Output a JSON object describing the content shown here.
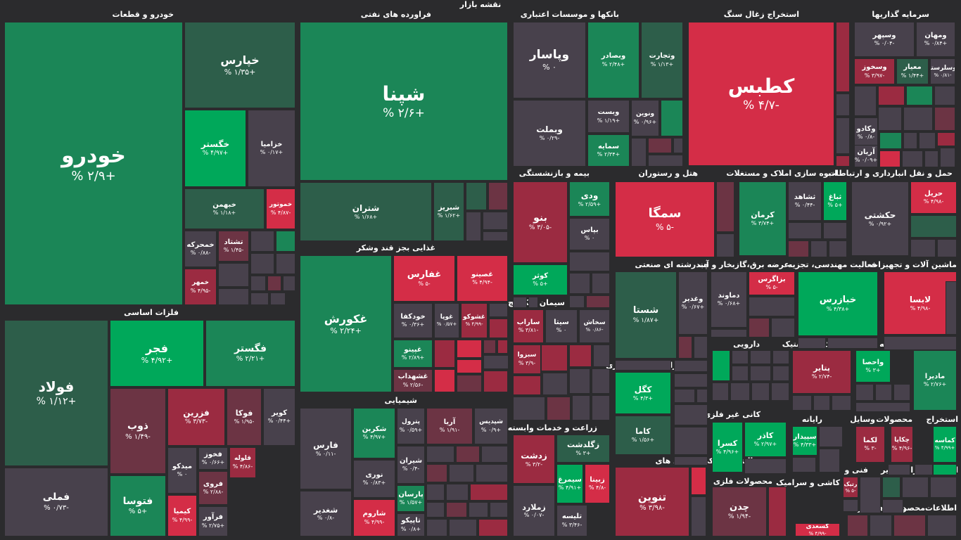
{
  "page_title": "نقشه بازار",
  "colors": {
    "g1": "#00a85a",
    "g2": "#1b8657",
    "g3": "#2d5e4a",
    "n0": "#48414c",
    "r1": "#d42d47",
    "r2": "#9b2b41",
    "r3": "#6c3444",
    "bg": "#2b2b2d"
  },
  "chart_data": {
    "type": "treemap",
    "title": "نقشه بازار",
    "value_unit": "%",
    "sectors": [
      {
        "name": "خودرو و قطعات",
        "tiles": [
          {
            "n": "خودرو",
            "v": "+۲/۹ %"
          },
          {
            "n": "خپارس",
            "v": "+۱/۳۵ %"
          },
          {
            "n": "خگستر",
            "v": "+۴/۹۷ %"
          },
          {
            "n": "خزامیا",
            "v": "+۰/۱۷ %"
          },
          {
            "n": "خبهمن",
            "v": "+۱/۱۸ %"
          },
          {
            "n": "خموتور",
            "v": "-۴/۸۷ %"
          },
          {
            "n": "خمحرکه",
            "v": "-۰/۸۸ %"
          },
          {
            "n": "تشتاد",
            "v": "-۱/۴۵ %"
          },
          {
            "n": "خمهر",
            "v": "-۴/۹۵ %"
          }
        ]
      },
      {
        "name": "فراورده های نفتی",
        "tiles": [
          {
            "n": "شپنا",
            "v": "+۲/۶ %"
          },
          {
            "n": "شتران",
            "v": "+۱/۶۸ %"
          },
          {
            "n": "شبریز",
            "v": "+۱/۶۲ %"
          }
        ]
      },
      {
        "name": "بانکها و موسسات اعتباری",
        "tiles": [
          {
            "n": "وپاسار",
            "v": "۰ %"
          },
          {
            "n": "وبصادر",
            "v": "+۲/۴۸ %"
          },
          {
            "n": "وتجارت",
            "v": "+۱/۱۳ %"
          },
          {
            "n": "وبملت",
            "v": "-۰/۲۹ %"
          },
          {
            "n": "وبست",
            "v": "+۱/۱۹ %"
          },
          {
            "n": "ونوین",
            "v": "+۰/۹۶ %"
          },
          {
            "n": "سمایه",
            "v": "+۲/۳۴ %"
          }
        ]
      },
      {
        "name": "استخراج زغال سنگ",
        "tiles": [
          {
            "n": "کطبس",
            "v": "-۴/۷ %"
          }
        ]
      },
      {
        "name": "سرمایه گذاریها",
        "tiles": [
          {
            "n": "وسپهر",
            "v": "-۰/۰۴ %"
          },
          {
            "n": "ومهان",
            "v": "+۰/۸۴ %"
          },
          {
            "n": "وسخوز",
            "v": "-۳/۹۷ %"
          },
          {
            "n": "معیار",
            "v": "+۱/۴۴ %"
          },
          {
            "n": "وسلرستا",
            "v": "-۰/۸۱ %"
          },
          {
            "n": "وکادو",
            "v": "-۰/۸ %"
          },
          {
            "n": "آریان",
            "v": "+۰/۰۹ %"
          }
        ]
      },
      {
        "name": "فلزات اساسی",
        "tiles": [
          {
            "n": "فولاد",
            "v": "+۱/۱۲ %"
          },
          {
            "n": "فملی",
            "v": "-۰/۷۳ %"
          },
          {
            "n": "فجر",
            "v": "+۴/۹۲ %"
          },
          {
            "n": "فگستر",
            "v": "+۲/۲۱ %"
          },
          {
            "n": "ذوب",
            "v": "-۱/۴۹ %"
          },
          {
            "n": "فزرین",
            "v": "-۳/۷۳ %"
          },
          {
            "n": "فوکا",
            "v": "-۱/۹۵ %"
          },
          {
            "n": "کویر",
            "v": "+۰/۴۴ %"
          },
          {
            "n": "فتوسا",
            "v": "+۵ %"
          },
          {
            "n": "میدکو",
            "v": "۰ %"
          },
          {
            "n": "فخوز",
            "v": "+۰/۶۶ %"
          },
          {
            "n": "قلوله",
            "v": "-۴/۸۶ %"
          },
          {
            "n": "فروی",
            "v": "-۲/۸۸ %"
          },
          {
            "n": "کیمیا",
            "v": "-۴/۹۹ %"
          },
          {
            "n": "فرآور",
            "v": "+۲/۷۵ %"
          }
        ]
      },
      {
        "name": "غذایی بجز قند وشکر",
        "tiles": [
          {
            "n": "غکورش",
            "v": "+۲/۲۴ %"
          },
          {
            "n": "غفارس",
            "v": "-۵ %"
          },
          {
            "n": "غصینو",
            "v": "-۴/۹۴ %"
          },
          {
            "n": "خودکفا",
            "v": "+۰/۳۶ %"
          },
          {
            "n": "غوپا",
            "v": "+۰/۵۷ %"
          },
          {
            "n": "غشوکو",
            "v": "-۴/۹۹ %"
          },
          {
            "n": "غپینو",
            "v": "+۲/۸۹ %"
          },
          {
            "n": "غشهداب",
            "v": "-۲/۵۶ %"
          }
        ]
      },
      {
        "name": "شیمیایی",
        "tiles": [
          {
            "n": "فارس",
            "v": "-۰/۱۱ %"
          },
          {
            "n": "شکربن",
            "v": "+۴/۹۷ %"
          },
          {
            "n": "پترول",
            "v": "+۰/۵۹ %"
          },
          {
            "n": "آریا",
            "v": "-۱/۹۱ %"
          },
          {
            "n": "شپدیس",
            "v": "+۰/۹ %"
          },
          {
            "n": "نوری",
            "v": "+۰/۸۳ %"
          },
          {
            "n": "شیران",
            "v": "-۰/۴ %"
          },
          {
            "n": "پارسان",
            "v": "+۱/۵۷ %"
          },
          {
            "n": "شغدیر",
            "v": "-۰/۸ %"
          },
          {
            "n": "شاروم",
            "v": "-۴/۹۹ %"
          },
          {
            "n": "تاپیکو",
            "v": "+۰/۸ %"
          }
        ]
      },
      {
        "name": "بیمه و بازنشستگی",
        "tiles": [
          {
            "n": "بنو",
            "v": "-۳/۰۵ %"
          },
          {
            "n": "ودی",
            "v": "+۲/۵۹ %"
          },
          {
            "n": "بپاس",
            "v": "۰ %"
          },
          {
            "n": "کوثر",
            "v": "+۵ %"
          }
        ]
      },
      {
        "name": "هتل و رستوران",
        "tiles": [
          {
            "n": "سمگا",
            "v": "-۵ %"
          }
        ]
      },
      {
        "name": "انبوه سازی املاک و مستغلات",
        "tiles": [
          {
            "n": "کرمان",
            "v": "+۳/۷۴ %"
          },
          {
            "n": "ثشاهد",
            "v": "-۰/۴۴ %"
          },
          {
            "n": "ثباغ",
            "v": "+۵ %"
          }
        ]
      },
      {
        "name": "حمل و نقل انبارداری و ارتباطات",
        "tiles": [
          {
            "n": "حکشتی",
            "v": "+۰/۹۲ %"
          },
          {
            "n": "حریل",
            "v": "-۴/۹۸ %"
          }
        ]
      },
      {
        "name": "سیمان آهک گچ",
        "tiles": [
          {
            "n": "ساراب",
            "v": "-۳/۸۱ %"
          },
          {
            "n": "سیتا",
            "v": "۰ %"
          },
          {
            "n": "سخاش",
            "v": "-۰/۸۶ %"
          },
          {
            "n": "سبزوا",
            "v": "-۳/۹ %"
          }
        ]
      },
      {
        "name": "چندرشته ای صنعتی",
        "tiles": [
          {
            "n": "شستا",
            "v": "+۱/۸۷ %"
          },
          {
            "n": "وغدیر",
            "v": "+۰/۶۷ %"
          }
        ]
      },
      {
        "name": "عرضه برق،گازبخار و آب",
        "tiles": [
          {
            "n": "دماوند",
            "v": "+۰/۶۸ %"
          },
          {
            "n": "بزاگرس",
            "v": "-۵ %"
          }
        ]
      },
      {
        "name": "فعالیت مهندسی، تجزیه",
        "tiles": [
          {
            "n": "خبازرس",
            "v": "+۴/۳۸ %"
          }
        ]
      },
      {
        "name": "ماشین آلات و تجهیزات",
        "tiles": [
          {
            "n": "لابسا",
            "v": "-۴/۹۸ %"
          }
        ]
      },
      {
        "name": "زراعت و خدمات وابسته",
        "tiles": [
          {
            "n": "زدشت",
            "v": "-۳/۲ %"
          },
          {
            "n": "زگلدشت",
            "v": "+۳ %"
          },
          {
            "n": "سیمرغ",
            "v": "+۴/۹۱ %"
          },
          {
            "n": "زبینا",
            "v": "-۴/۸ %"
          },
          {
            "n": "زملارد",
            "v": "-۰/۰۷ %"
          },
          {
            "n": "تلیسه",
            "v": "-۳/۴۶ %"
          }
        ]
      },
      {
        "name": "استخراج کانه های فلزی",
        "tiles": [
          {
            "n": "کگل",
            "v": "+۴/۳ %"
          },
          {
            "n": "کاما",
            "v": "+۱/۵۶ %"
          }
        ]
      },
      {
        "name": "دارویی",
        "tiles": []
      },
      {
        "name": "لاستیک و پلاستیک",
        "tiles": [
          {
            "n": "پتایر",
            "v": "-۲/۷۴ %"
          }
        ]
      },
      {
        "name": "واسطه گریهای",
        "tiles": [
          {
            "n": "واحصا",
            "v": "+۳ %"
          }
        ]
      },
      {
        "name": "محصولات",
        "tiles": [
          {
            "n": "مادیرا",
            "v": "+۲/۷۶ %"
          }
        ]
      },
      {
        "name": "کانی غیر فلزی",
        "tiles": [
          {
            "n": "کسرا",
            "v": "+۴/۹۶ %"
          },
          {
            "n": "کاذر",
            "v": "+۲/۹۷ %"
          }
        ]
      },
      {
        "name": "فعالیتهای کمکی به نهاد های",
        "tiles": [
          {
            "n": "تنوین",
            "v": "-۳/۹۸ %"
          }
        ]
      },
      {
        "name": "محصولات فلزی",
        "tiles": [
          {
            "n": "چدن",
            "v": "-۱/۹۴ %"
          }
        ]
      },
      {
        "name": "رایانه",
        "tiles": [
          {
            "n": "سپیدار",
            "v": "+۴/۳۳ %"
          }
        ]
      },
      {
        "name": "وسایل",
        "tiles": [
          {
            "n": "لکما",
            "v": "-۳ %"
          }
        ]
      },
      {
        "name": "محصولات",
        "tiles": [
          {
            "n": "چکاپا",
            "v": "-۴/۹۶ %"
          }
        ]
      },
      {
        "name": "استخراج",
        "tiles": [
          {
            "n": "کماسه",
            "v": "+۴/۹۹ %"
          }
        ]
      },
      {
        "name": "کاشی و سرامیک",
        "tiles": [
          {
            "n": "کسعدی",
            "v": "-۴/۹۹ %"
          }
        ]
      },
      {
        "name": "فنی و",
        "tiles": [
          {
            "n": "رتیک",
            "v": "-۵ %"
          }
        ]
      },
      {
        "name": "سایر",
        "tiles": []
      },
      {
        "name": "استخرا",
        "tiles": []
      },
      {
        "name": "مخابرات",
        "tiles": []
      },
      {
        "name": "خرده",
        "tiles": []
      },
      {
        "name": "دستگاهر",
        "tiles": []
      },
      {
        "name": "محصر",
        "tiles": []
      },
      {
        "name": "اطلاعات",
        "tiles": []
      },
      {
        "name": "سایر",
        "tiles": []
      }
    ]
  }
}
